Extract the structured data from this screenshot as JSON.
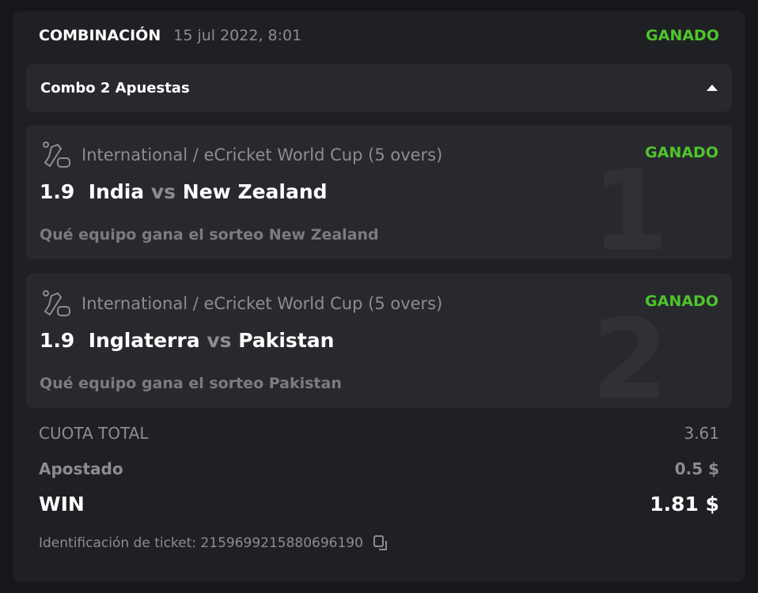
{
  "header": {
    "title": "COMBINACIÓN",
    "date": "15 jul 2022, 8:01",
    "status": "GANADO"
  },
  "combo": {
    "label": "Combo 2 Apuestas"
  },
  "colors": {
    "accent": "#4ec52b",
    "card": "#1f2024",
    "inner": "#28292e"
  },
  "bets": [
    {
      "index": "1",
      "league": "International / eCricket World Cup (5 overs)",
      "status": "GANADO",
      "odds": "1.9",
      "home": "India",
      "vs": "vs",
      "away": "New Zealand",
      "selection": "Qué equipo gana el sorteo New Zealand",
      "icon": "ecricket-icon"
    },
    {
      "index": "2",
      "league": "International / eCricket World Cup (5 overs)",
      "status": "GANADO",
      "odds": "1.9",
      "home": "Inglaterra",
      "vs": "vs",
      "away": "Pakistan",
      "selection": "Qué equipo gana el sorteo Pakistan",
      "icon": "ecricket-icon"
    }
  ],
  "summary": {
    "total_odds_label": "CUOTA TOTAL",
    "total_odds": "3.61",
    "staked_label": "Apostado",
    "staked": "0.5 $",
    "win_label": "WIN",
    "win": "1.81 $",
    "ticket_label": "Identificación de ticket:",
    "ticket_id": "2159699215880696190"
  }
}
